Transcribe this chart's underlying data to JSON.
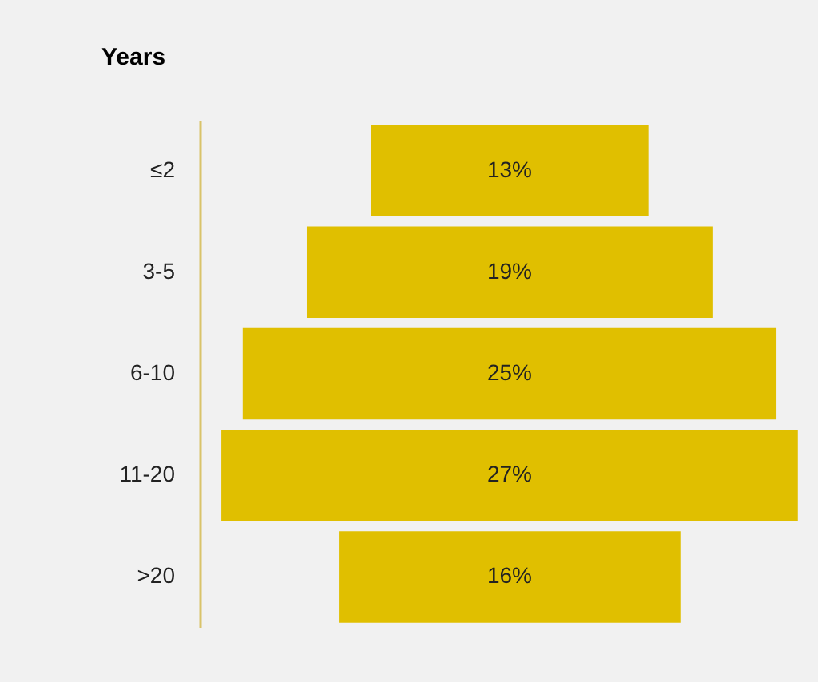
{
  "chart_data": {
    "type": "other",
    "ylabel": "Years",
    "categories": [
      "≤2",
      "3-5",
      "6-10",
      "11-20",
      ">20"
    ],
    "values": [
      13,
      19,
      25,
      27,
      16
    ],
    "value_labels": [
      "13%",
      "19%",
      "25%",
      "27%",
      "16%"
    ],
    "color": "#e0bf00"
  }
}
